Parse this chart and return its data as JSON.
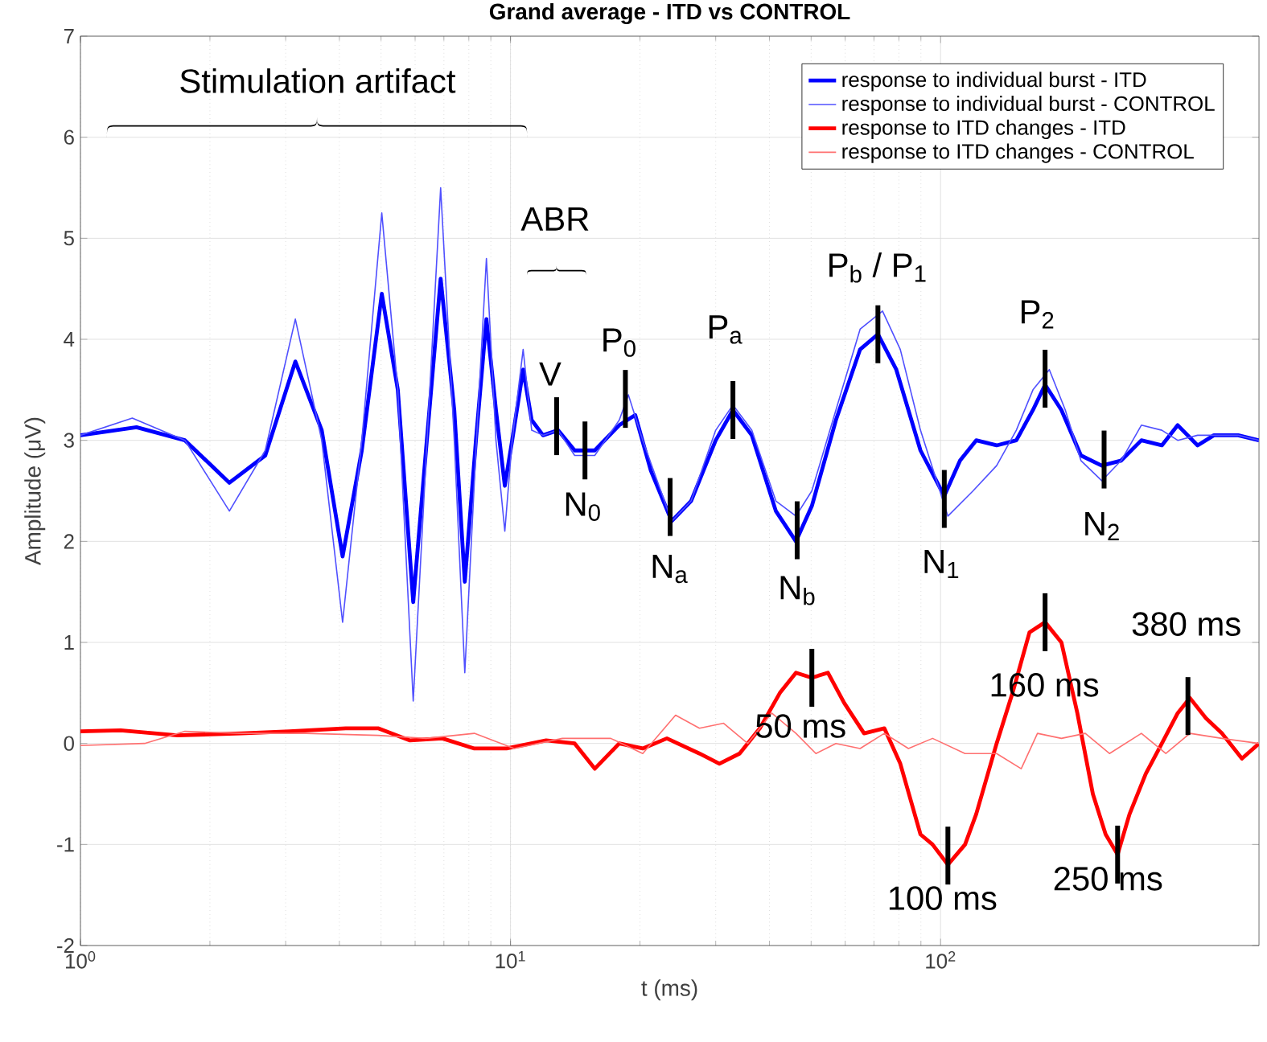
{
  "chart_data": {
    "type": "line",
    "title": "Grand average - ITD vs CONTROL",
    "xlabel": "t (ms)",
    "ylabel": "Amplitude (μV)",
    "log": "x",
    "grid": true,
    "legend": "top right",
    "xlim": [
      1,
      550
    ],
    "ylim": [
      -2,
      7
    ],
    "xticks": [
      {
        "value": 1,
        "label": "10$^{0}$"
      },
      {
        "value": 10,
        "label": "10$^{1}$"
      },
      {
        "value": 100,
        "label": "10$^{2}$"
      }
    ],
    "yticks": [
      -2,
      -1,
      0,
      1,
      2,
      3,
      4,
      5,
      6,
      7
    ],
    "series": [
      {
        "name": "response to individual burst - ITD",
        "color": "#0000ff",
        "x": [
          1,
          1.35,
          1.75,
          2.22,
          2.69,
          3.16,
          3.64,
          4.07,
          4.51,
          5.02,
          5.47,
          5.94,
          6.36,
          6.88,
          7.4,
          7.83,
          8.31,
          8.79,
          9.25,
          9.7,
          10.09,
          10.7,
          11.2,
          11.9,
          12.9,
          14.1,
          15.7,
          17.9,
          19.5,
          21.2,
          23.7,
          26.3,
          30.0,
          32.9,
          36.4,
          41.4,
          46.1,
          50.2,
          57.1,
          65.0,
          71.5,
          78.9,
          89.8,
          102,
          111,
          121,
          135,
          150,
          164,
          175,
          191,
          212,
          237,
          263,
          293,
          327,
          356,
          396,
          432,
          492,
          550
        ],
        "values": [
          3.05,
          3.13,
          3.0,
          2.58,
          2.85,
          3.78,
          3.1,
          1.85,
          2.9,
          4.45,
          3.5,
          1.4,
          2.9,
          4.6,
          3.3,
          1.6,
          3.0,
          4.2,
          3.3,
          2.55,
          3.0,
          3.7,
          3.2,
          3.05,
          3.1,
          2.9,
          2.9,
          3.15,
          3.25,
          2.7,
          2.2,
          2.4,
          3.0,
          3.3,
          3.05,
          2.3,
          2.0,
          2.35,
          3.2,
          3.9,
          4.05,
          3.7,
          2.9,
          2.45,
          2.8,
          3.0,
          2.95,
          3.0,
          3.3,
          3.55,
          3.3,
          2.85,
          2.75,
          2.8,
          3.0,
          2.95,
          3.15,
          2.95,
          3.05,
          3.05,
          3.0
        ]
      },
      {
        "name": "response to individual burst - CONTROL",
        "color": "#5050ff",
        "x": [
          1,
          1.32,
          1.75,
          2.22,
          2.69,
          3.16,
          3.64,
          4.07,
          4.51,
          5.02,
          5.47,
          5.94,
          6.36,
          6.88,
          7.4,
          7.83,
          8.31,
          8.79,
          9.25,
          9.7,
          10.09,
          10.7,
          11.2,
          11.9,
          12.9,
          14.1,
          15.7,
          17.9,
          18.8,
          20.3,
          23.7,
          26.3,
          30.0,
          32.9,
          36.4,
          41.4,
          46.1,
          50.2,
          57.1,
          65.0,
          73.3,
          80.6,
          89.8,
          104,
          119,
          135,
          150,
          164,
          179,
          195,
          212,
          237,
          263,
          293,
          327,
          356,
          396,
          432,
          492,
          550
        ],
        "values": [
          3.05,
          3.22,
          3.0,
          2.3,
          2.9,
          4.2,
          3.0,
          1.2,
          3.0,
          5.25,
          3.5,
          0.42,
          2.8,
          5.5,
          3.0,
          0.7,
          2.9,
          4.8,
          3.0,
          2.1,
          3.0,
          3.9,
          3.1,
          3.05,
          3.1,
          2.85,
          2.85,
          3.2,
          3.45,
          3.0,
          2.2,
          2.4,
          3.1,
          3.35,
          3.1,
          2.4,
          2.25,
          2.5,
          3.3,
          4.1,
          4.28,
          3.9,
          3.1,
          2.25,
          2.5,
          2.75,
          3.1,
          3.5,
          3.7,
          3.3,
          2.8,
          2.6,
          2.8,
          3.15,
          3.1,
          3.0,
          3.05,
          3.05,
          3.05,
          3.0
        ]
      },
      {
        "name": "response to ITD changes - ITD",
        "color": "#ff0000",
        "x": [
          1,
          1.24,
          1.68,
          2.37,
          3.06,
          4.14,
          4.92,
          5.84,
          6.94,
          8.24,
          9.79,
          12.1,
          14.1,
          15.7,
          17.9,
          20.3,
          23.1,
          27.5,
          30.6,
          34.1,
          38.0,
          42.3,
          46.1,
          50.2,
          54.7,
          59.7,
          66.4,
          74.0,
          80.6,
          89.8,
          95.8,
          104,
          114,
          121,
          135,
          147,
          161,
          175,
          191,
          208,
          226,
          242,
          258,
          275,
          300,
          327,
          356,
          380,
          414,
          451,
          502,
          550
        ],
        "values": [
          0.12,
          0.13,
          0.08,
          0.1,
          0.12,
          0.15,
          0.15,
          0.03,
          0.05,
          -0.05,
          -0.05,
          0.03,
          0.0,
          -0.25,
          0.0,
          -0.05,
          0.05,
          -0.1,
          -0.2,
          -0.1,
          0.15,
          0.5,
          0.7,
          0.65,
          0.7,
          0.4,
          0.1,
          0.15,
          -0.2,
          -0.9,
          -1.0,
          -1.2,
          -1.0,
          -0.7,
          0.0,
          0.5,
          1.1,
          1.2,
          1.0,
          0.3,
          -0.5,
          -0.9,
          -1.1,
          -0.7,
          -0.3,
          0.0,
          0.3,
          0.45,
          0.25,
          0.1,
          -0.15,
          0.0
        ]
      },
      {
        "name": "response to ITD changes - CONTROL",
        "color": "#ff7070",
        "x": [
          1,
          1.41,
          1.75,
          2.37,
          3.34,
          4.92,
          6.36,
          8.24,
          10.2,
          13.2,
          17.1,
          20.3,
          24.2,
          27.5,
          31.3,
          35.6,
          40.5,
          46.1,
          51.3,
          57.1,
          65.0,
          74.0,
          84.2,
          95.8,
          114,
          135,
          154,
          168,
          191,
          217,
          247,
          293,
          334,
          380,
          451,
          550
        ],
        "values": [
          -0.02,
          0.0,
          0.12,
          0.1,
          0.1,
          0.08,
          0.05,
          0.1,
          -0.05,
          0.05,
          0.05,
          -0.1,
          0.28,
          0.15,
          0.2,
          0.0,
          0.3,
          0.1,
          -0.1,
          0.0,
          -0.05,
          0.1,
          -0.05,
          0.05,
          -0.1,
          -0.1,
          -0.25,
          0.1,
          0.05,
          0.1,
          -0.1,
          0.1,
          -0.1,
          0.1,
          0.05,
          0.0
        ]
      }
    ],
    "annotations": [
      "Stimulation artifact",
      "ABR",
      {
        "text": "V",
        "x": 12.8,
        "y": 3.14
      },
      {
        "text": "N$_{0}$",
        "x": 14.9,
        "y": 2.9
      },
      {
        "text": "P$_{0}$",
        "x": 18.5,
        "y": 3.41
      },
      {
        "text": "N$_{a}$",
        "x": 23.5,
        "y": 2.34
      },
      {
        "text": "P$_{a}$",
        "x": 32.9,
        "y": 3.3
      },
      {
        "text": "N$_{b}$",
        "x": 46.4,
        "y": 2.11
      },
      {
        "text": "P$_{b}$ / P$_{1}$",
        "x": 71.5,
        "y": 4.05
      },
      {
        "text": "N$_{1}$",
        "x": 102,
        "y": 2.42
      },
      {
        "text": "P$_{2}$",
        "x": 175,
        "y": 3.61
      },
      {
        "text": "N$_{2}$",
        "x": 240,
        "y": 2.81
      },
      {
        "text": "50 ms",
        "x": 50.2,
        "y": 0.65
      },
      {
        "text": "100 ms",
        "x": 104,
        "y": -1.11
      },
      {
        "text": "160 ms",
        "x": 175,
        "y": 1.2
      },
      {
        "text": "250 ms",
        "x": 258,
        "y": -1.1
      },
      {
        "text": "380 ms",
        "x": 376,
        "y": 0.37
      }
    ]
  }
}
